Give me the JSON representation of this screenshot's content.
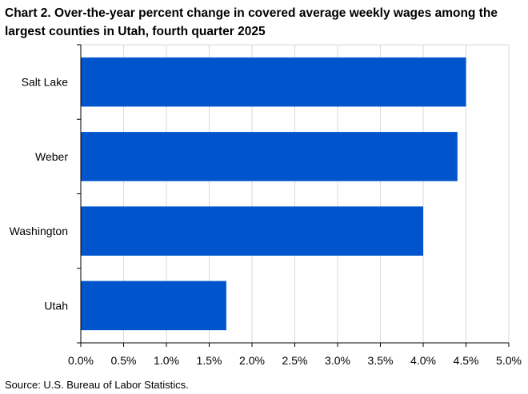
{
  "title": "Chart 2. Over-the-year percent change in covered average weekly wages among the largest counties in Utah, fourth quarter 2025",
  "source": "Source: U.S. Bureau of Labor Statistics.",
  "colors": {
    "bar": "#0055cc",
    "grid": "#d9d9d9",
    "axis": "#000000"
  },
  "chart_data": {
    "type": "bar",
    "orientation": "horizontal",
    "categories": [
      "Salt Lake",
      "Weber",
      "Washington",
      "Utah"
    ],
    "values": [
      4.5,
      4.4,
      4.0,
      1.7
    ],
    "xlim": [
      0,
      5
    ],
    "xticks": [
      0.0,
      0.5,
      1.0,
      1.5,
      2.0,
      2.5,
      3.0,
      3.5,
      4.0,
      4.5,
      5.0
    ],
    "xtick_labels": [
      "0.0%",
      "0.5%",
      "1.0%",
      "1.5%",
      "2.0%",
      "2.5%",
      "3.0%",
      "3.5%",
      "4.0%",
      "4.5%",
      "5.0%"
    ],
    "grid": true
  }
}
